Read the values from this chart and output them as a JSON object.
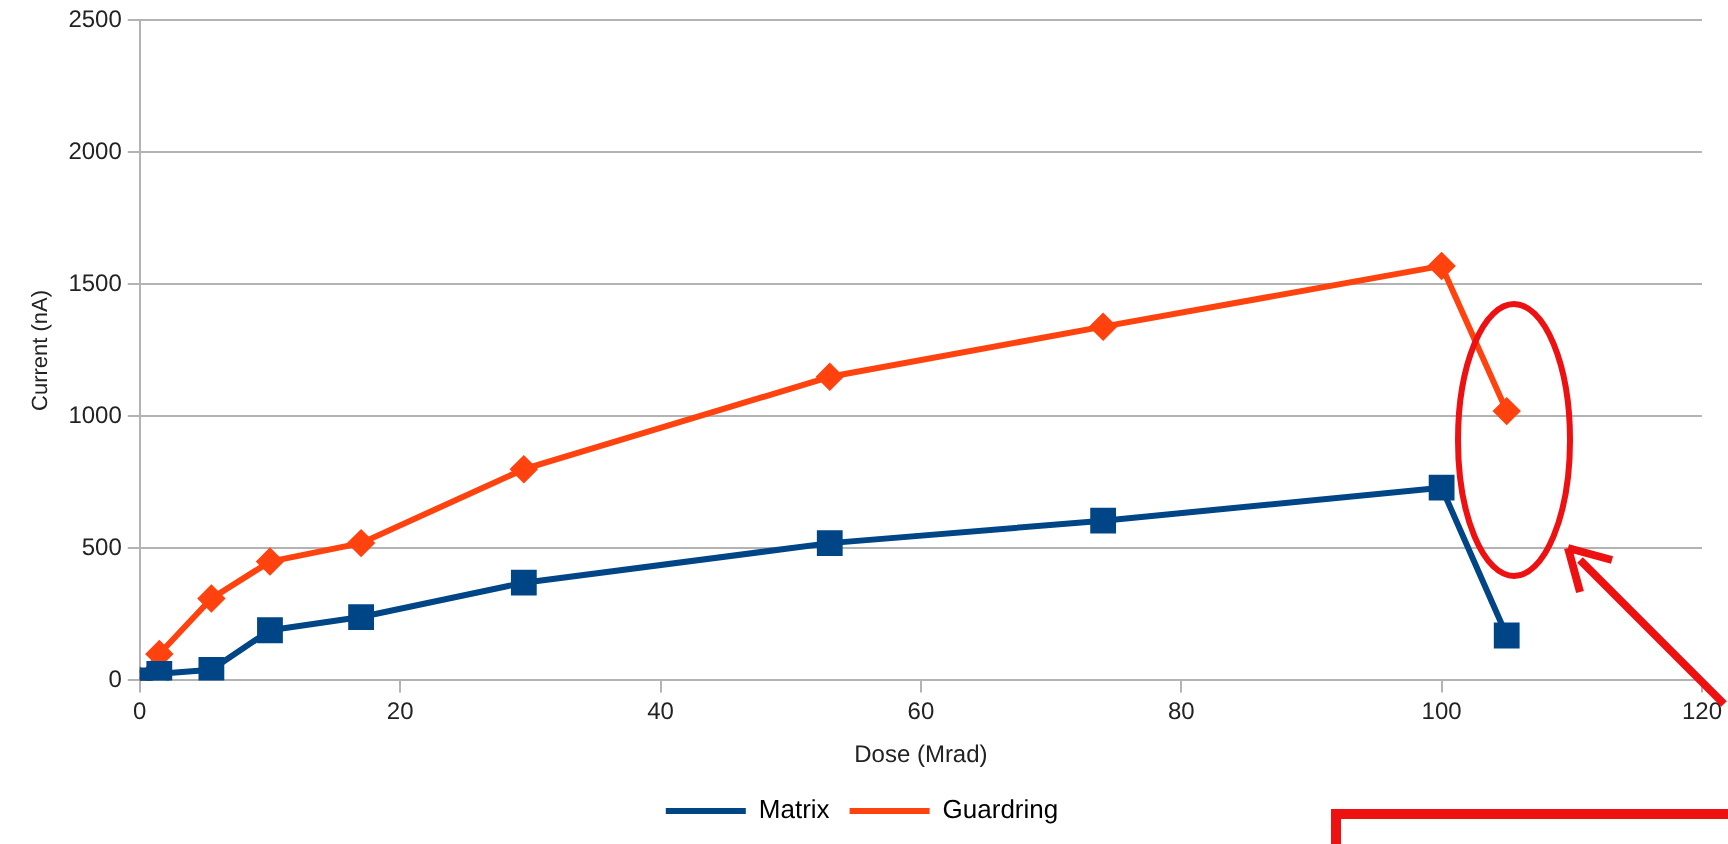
{
  "chart_data": {
    "type": "line",
    "xlabel": "Dose (Mrad)",
    "ylabel": "Current (nA)",
    "x": [
      0,
      1.5,
      5.5,
      10,
      17,
      29.5,
      53,
      74,
      100,
      105
    ],
    "series": [
      {
        "name": "Matrix",
        "color": "#004586",
        "marker": "square",
        "values": [
          0,
          25,
          40,
          190,
          240,
          370,
          520,
          605,
          730,
          170
        ]
      },
      {
        "name": "Guardring",
        "color": "#ff420e",
        "marker": "diamond",
        "values": [
          0,
          100,
          310,
          450,
          520,
          800,
          1150,
          1340,
          1570,
          1020
        ]
      }
    ],
    "xlim": [
      0,
      120
    ],
    "xticks": [
      0,
      20,
      40,
      60,
      80,
      100,
      120
    ],
    "ylim": [
      0,
      2500
    ],
    "yticks": [
      0,
      500,
      1000,
      1500,
      2000,
      2500
    ],
    "grid": "y",
    "legend": "bottom"
  }
}
